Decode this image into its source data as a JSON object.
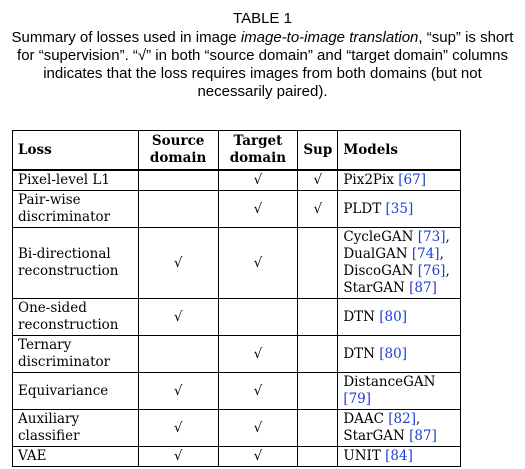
{
  "caption": {
    "title": "TABLE 1",
    "pre": "Summary of losses used in image ",
    "em": "image-to-image translation",
    "post": ", “sup” is short for “supervision”. “√” in both “source domain” and “target domain” columns indicates that the loss requires images from both domains (but not necessarily paired)."
  },
  "table": {
    "headers": {
      "loss": "Loss",
      "source_line1": "Source",
      "source_line2": "domain",
      "target_line1": "Target",
      "target_line2": "domain",
      "sup": "Sup",
      "models": "Models"
    },
    "check": "√",
    "rows": [
      {
        "loss": "Pixel-level L1",
        "models": [
          {
            "name": "Pix2Pix",
            "ref": "[67]"
          }
        ]
      },
      {
        "loss": "Pair-wise discriminator",
        "models": [
          {
            "name": "PLDT",
            "ref": "[35]"
          }
        ]
      },
      {
        "loss": "Bi-directional reconstruction",
        "models": [
          {
            "name": "CycleGAN",
            "ref": "[73]",
            "suffix": ","
          },
          {
            "name": "DualGAN",
            "ref": "[74]",
            "suffix": ","
          },
          {
            "name": "DiscoGAN",
            "ref": "[76]",
            "suffix": ","
          },
          {
            "name": "StarGAN",
            "ref": "[87]"
          }
        ]
      },
      {
        "loss": "One-sided reconstruction",
        "models": [
          {
            "name": "DTN",
            "ref": "[80]"
          }
        ]
      },
      {
        "loss": "Ternary discriminator",
        "models": [
          {
            "name": "DTN",
            "ref": "[80]"
          }
        ]
      },
      {
        "loss": "Equivariance",
        "models": [
          {
            "name": "DistanceGAN",
            "ref": "[79]"
          }
        ]
      },
      {
        "loss": "Auxiliary classifier",
        "models": [
          {
            "name": "DAAC",
            "ref": "[82]",
            "suffix": ","
          },
          {
            "name": "StarGAN",
            "ref": "[87]"
          }
        ]
      },
      {
        "loss": "VAE",
        "models": [
          {
            "name": "UNIT",
            "ref": "[84]"
          }
        ]
      }
    ]
  }
}
